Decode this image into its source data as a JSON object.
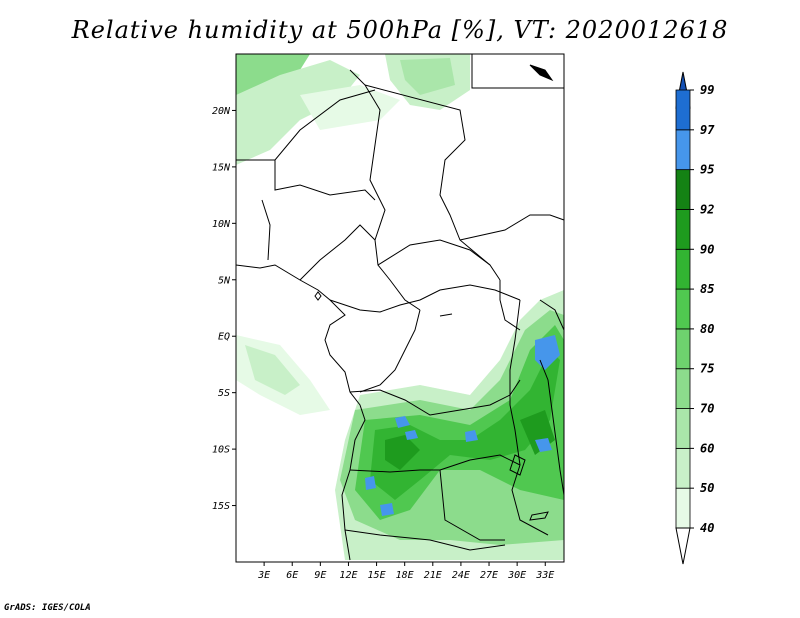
{
  "title": "Relative humidity at 500hPa [%], VT: 2020012618",
  "credit": "GrADS: IGES/COLA",
  "map": {
    "lon_range": [
      0,
      35
    ],
    "lat_range": [
      -20,
      25
    ],
    "lat_ticks": [
      {
        "value": 20,
        "label": "20N"
      },
      {
        "value": 15,
        "label": "15N"
      },
      {
        "value": 10,
        "label": "10N"
      },
      {
        "value": 5,
        "label": "5N"
      },
      {
        "value": 0,
        "label": "EQ"
      },
      {
        "value": -5,
        "label": "5S"
      },
      {
        "value": -10,
        "label": "10S"
      },
      {
        "value": -15,
        "label": "15S"
      }
    ],
    "lon_ticks": [
      {
        "value": 3,
        "label": "3E"
      },
      {
        "value": 6,
        "label": "6E"
      },
      {
        "value": 9,
        "label": "9E"
      },
      {
        "value": 12,
        "label": "12E"
      },
      {
        "value": 15,
        "label": "15E"
      },
      {
        "value": 18,
        "label": "18E"
      },
      {
        "value": 21,
        "label": "21E"
      },
      {
        "value": 24,
        "label": "24E"
      },
      {
        "value": 27,
        "label": "27E"
      },
      {
        "value": 30,
        "label": "30E"
      },
      {
        "value": 33,
        "label": "33E"
      }
    ]
  },
  "colorbar": {
    "levels": [
      "40",
      "50",
      "60",
      "70",
      "75",
      "80",
      "85",
      "90",
      "92",
      "95",
      "97",
      "99"
    ],
    "colors": [
      "#ffffff",
      "#e6fae6",
      "#c8f0c8",
      "#aae6aa",
      "#8cdc8c",
      "#6ed26e",
      "#50c850",
      "#32b432",
      "#1e9b1e",
      "#148214",
      "#4696eb",
      "#1e6ed2",
      "#1450b4"
    ]
  }
}
